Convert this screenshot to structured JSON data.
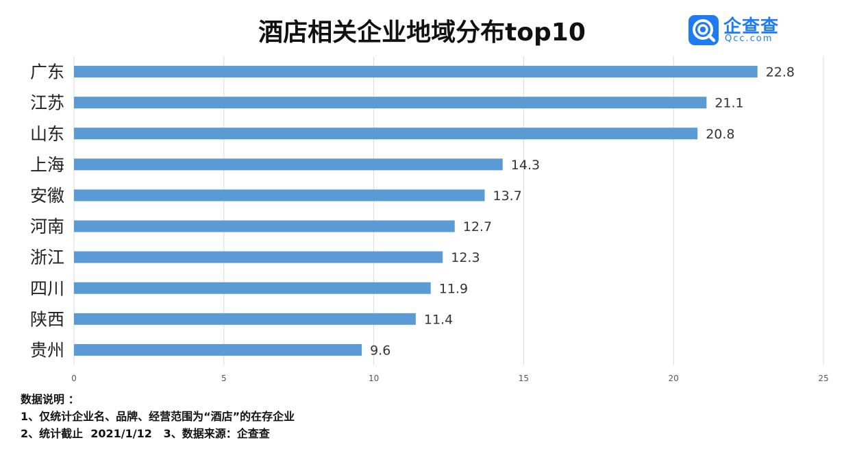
{
  "title": "酒店相关企业地域分布top10",
  "logo": {
    "name": "企查查",
    "sub": "Qcc.com"
  },
  "notes": {
    "heading": "数据说明 ：",
    "line1": "1、仅统计企业名、品牌、经营范围为“酒店”的在存企业",
    "line2": "2、统计截止  2021/1/12   3、数据来源：企查查"
  },
  "chart_data": {
    "type": "bar",
    "orientation": "horizontal",
    "title": "酒店相关企业地域分布top10",
    "categories": [
      "广东",
      "江苏",
      "山东",
      "上海",
      "安徽",
      "河南",
      "浙江",
      "四川",
      "陕西",
      "贵州"
    ],
    "values": [
      22.8,
      21.1,
      20.8,
      14.3,
      13.7,
      12.7,
      12.3,
      11.9,
      11.4,
      9.6
    ],
    "xlim": [
      0,
      25
    ],
    "xticks": [
      0,
      5,
      10,
      15,
      20,
      25
    ],
    "grid": true,
    "bar_color": "#5b9bd5"
  }
}
